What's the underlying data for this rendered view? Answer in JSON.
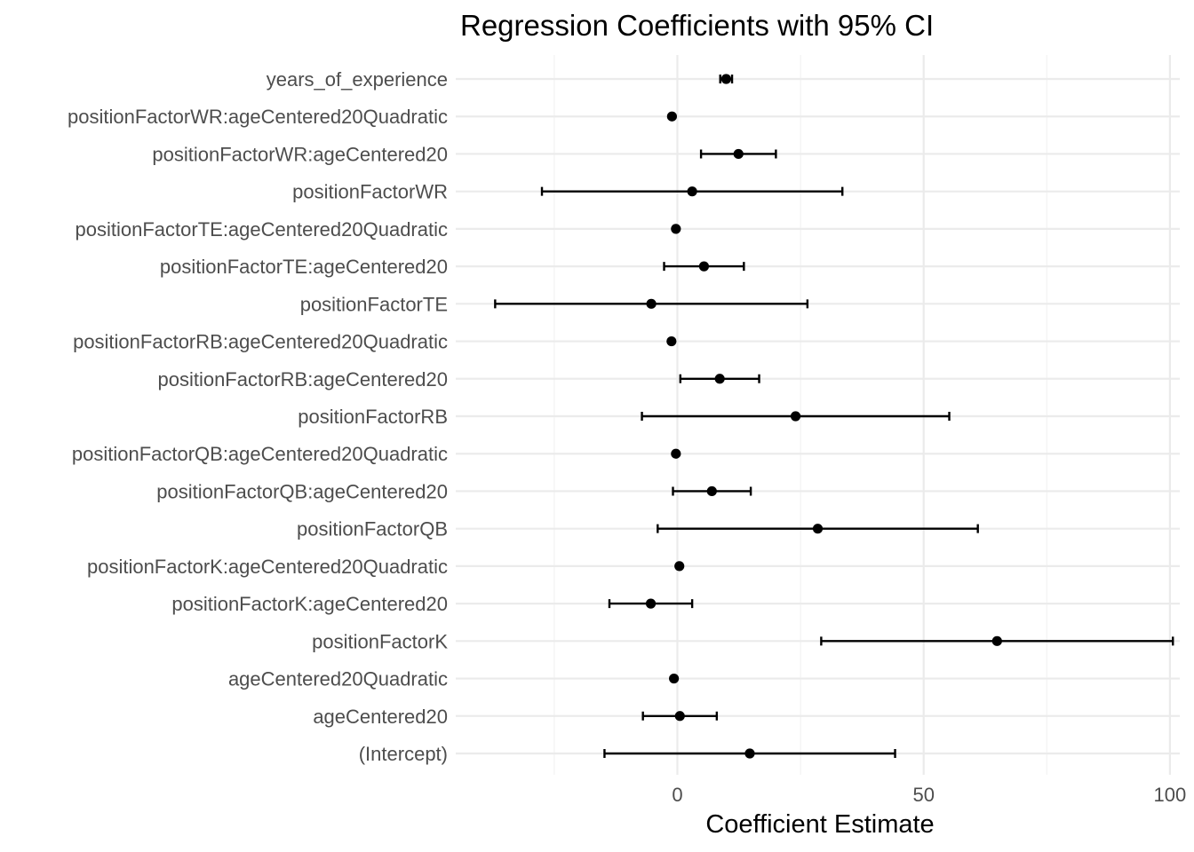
{
  "chart_data": {
    "type": "scatter",
    "title": "Regression Coefficients with 95% CI",
    "xlabel": "Coefficient Estimate",
    "ylabel": "",
    "xlim": [
      -45,
      102
    ],
    "x_ticks": [
      0,
      50,
      100
    ],
    "x_minor_ticks": [
      -25,
      25,
      75
    ],
    "grid": true,
    "error_bars": true,
    "categories": [
      "(Intercept)",
      "ageCentered20",
      "ageCentered20Quadratic",
      "positionFactorK",
      "positionFactorK:ageCentered20",
      "positionFactorK:ageCentered20Quadratic",
      "positionFactorQB",
      "positionFactorQB:ageCentered20",
      "positionFactorQB:ageCentered20Quadratic",
      "positionFactorRB",
      "positionFactorRB:ageCentered20",
      "positionFactorRB:ageCentered20Quadratic",
      "positionFactorTE",
      "positionFactorTE:ageCentered20",
      "positionFactorTE:ageCentered20Quadratic",
      "positionFactorWR",
      "positionFactorWR:ageCentered20",
      "positionFactorWR:ageCentered20Quadratic",
      "years_of_experience"
    ],
    "estimates": [
      14.7,
      0.5,
      -0.7,
      64.9,
      -5.4,
      0.4,
      28.5,
      7.0,
      -0.3,
      24.0,
      8.6,
      -1.2,
      -5.3,
      5.4,
      -0.3,
      3.0,
      12.4,
      -1.1,
      9.9
    ],
    "ci_low": [
      -14.8,
      -7.0,
      -0.9,
      29.2,
      -13.8,
      0.2,
      -4.0,
      -0.9,
      -0.4,
      -7.2,
      0.6,
      -1.3,
      -37.0,
      -2.7,
      -0.4,
      -27.5,
      4.8,
      -1.2,
      8.7
    ],
    "ci_high": [
      44.2,
      8.0,
      -0.5,
      100.6,
      3.0,
      0.6,
      61.0,
      14.9,
      -0.2,
      55.2,
      16.6,
      -1.1,
      26.4,
      13.5,
      -0.2,
      33.5,
      20.0,
      -1.0,
      11.1
    ]
  }
}
